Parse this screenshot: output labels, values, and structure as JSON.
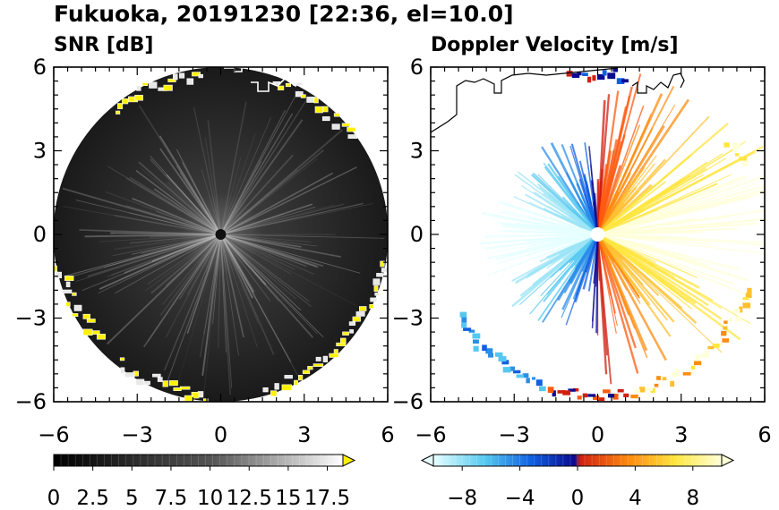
{
  "figure": {
    "title": "Fukuoka, 20191230 [22:36, el=10.0]"
  },
  "chart_data": [
    {
      "type": "heatmap",
      "title": "SNR [dB]",
      "xlim": [
        -6,
        6
      ],
      "ylim": [
        -6,
        6
      ],
      "x_ticks": [
        "−6",
        "−3",
        "0",
        "3",
        "6"
      ],
      "y_ticks": [
        "6",
        "3",
        "0",
        "−3",
        "−6"
      ],
      "x_tick_values": [
        -6,
        -3,
        0,
        3,
        6
      ],
      "y_tick_values": [
        6,
        3,
        0,
        -3,
        -6
      ],
      "data_extent_radius": 6,
      "colorbar": {
        "min": 0,
        "max": 18.5,
        "extend": "max",
        "tick_labels": [
          "0",
          "2.5",
          "5",
          "7.5",
          "10",
          "12.5",
          "15",
          "17.5"
        ],
        "tick_values": [
          0,
          2.5,
          5,
          7.5,
          10,
          12.5,
          15,
          17.5
        ],
        "colors": [
          "#000000",
          "#ffffff",
          "#fff200"
        ]
      },
      "coastline": true
    },
    {
      "type": "heatmap",
      "title": "Doppler Velocity [m/s]",
      "xlim": [
        -6,
        6
      ],
      "ylim": [
        -6,
        6
      ],
      "x_ticks": [
        "−6",
        "−3",
        "0",
        "3",
        "6"
      ],
      "y_ticks": [
        "6",
        "3",
        "0",
        "−3",
        "−6"
      ],
      "x_tick_values": [
        -6,
        -3,
        0,
        3,
        6
      ],
      "y_tick_values": [
        6,
        3,
        0,
        -3,
        -6
      ],
      "colorbar": {
        "min": -10,
        "max": 10,
        "extend": "both",
        "tick_labels": [
          "−8",
          "−4",
          "0",
          "4",
          "8"
        ],
        "tick_values": [
          -8,
          -4,
          0,
          4,
          8
        ],
        "colors": [
          "#e6ffff",
          "#55c8f0",
          "#1060e0",
          "#0a0a90",
          "#d02010",
          "#ff8c10",
          "#ffe640",
          "#ffffd8"
        ]
      },
      "coastline": true
    }
  ]
}
